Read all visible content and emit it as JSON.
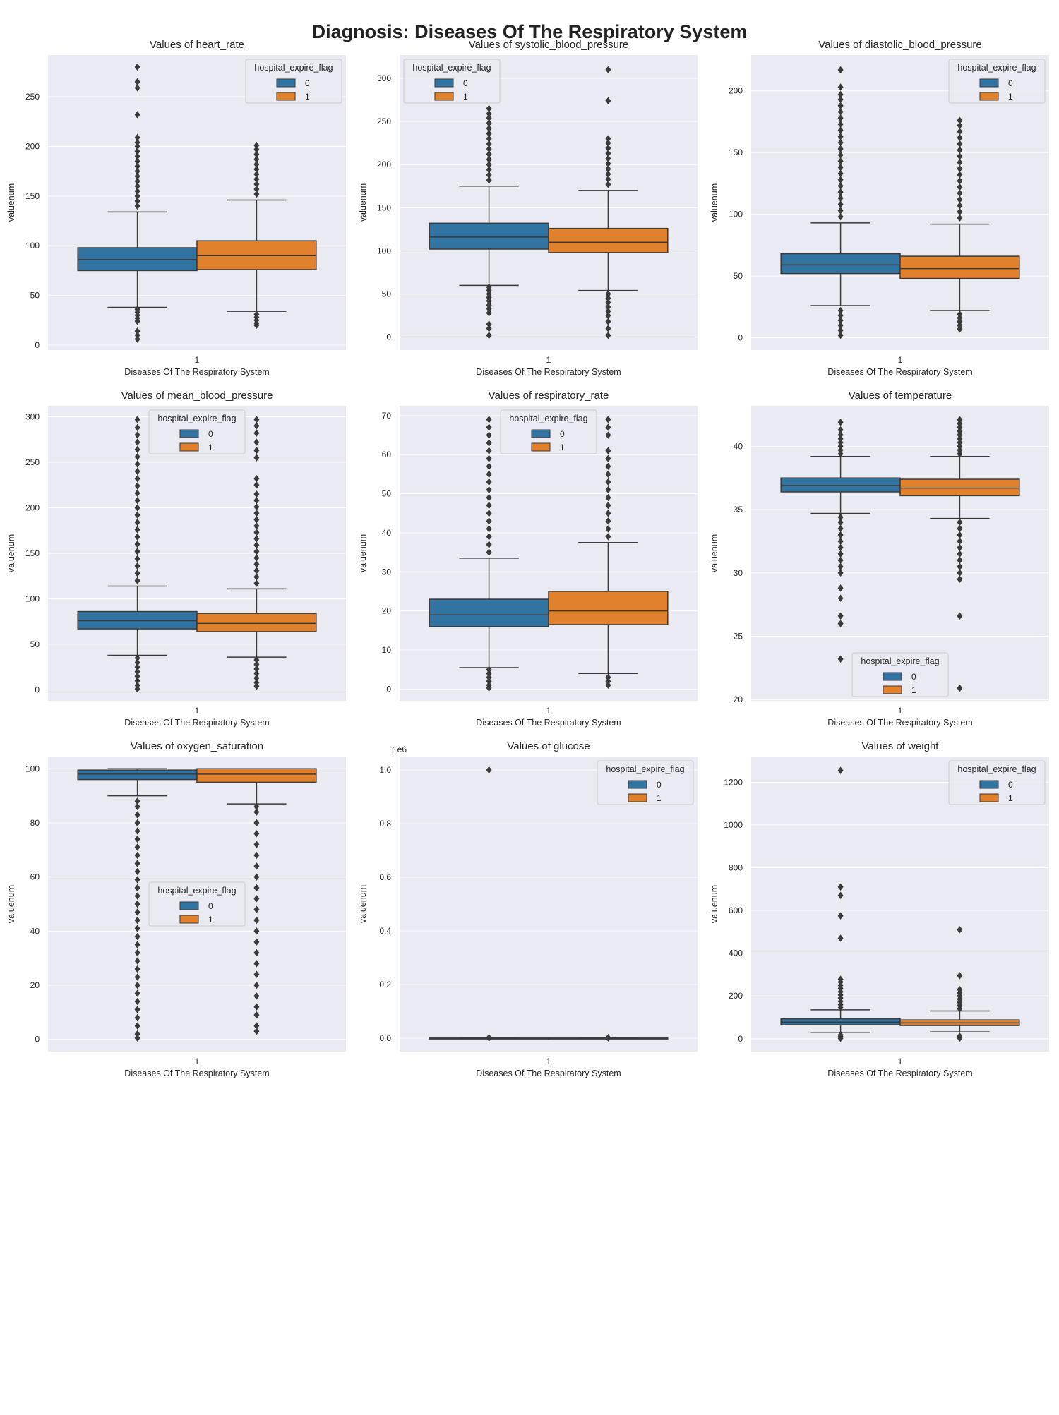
{
  "figure": {
    "suptitle": "Diagnosis: Diseases Of The Respiratory System"
  },
  "colors": {
    "group_0": "#3274a1",
    "group_1": "#e1812c",
    "axes_bg": "#eaeaf2",
    "grid": "#ffffff",
    "line": "#3a3a3a"
  },
  "chart_data": [
    {
      "type": "box",
      "title": "Values of heart_rate",
      "xlabel": "Diseases Of The Respiratory System",
      "ylabel": "valuenum",
      "categories": [
        "1"
      ],
      "ylim": [
        -5,
        292
      ],
      "yticks": [
        0,
        50,
        100,
        150,
        200,
        250
      ],
      "tick_labels": [
        "0",
        "50",
        "100",
        "150",
        "200",
        "250"
      ],
      "legend": {
        "title": "hospital_expire_flag",
        "entries": [
          "0",
          "1"
        ],
        "position": "top-right"
      },
      "series": [
        {
          "name": "0",
          "whislo": 38,
          "q1": 75,
          "median": 86,
          "q3": 98,
          "whishi": 134,
          "outliers": [
            6,
            10,
            14,
            24,
            27,
            30,
            33,
            36,
            140,
            145,
            150,
            155,
            160,
            165,
            170,
            175,
            180,
            185,
            190,
            195,
            200,
            204,
            209,
            232,
            259,
            265,
            280
          ]
        },
        {
          "name": "1",
          "whislo": 34,
          "q1": 76,
          "median": 90,
          "q3": 105,
          "whishi": 146,
          "outliers": [
            20,
            22,
            25,
            28,
            31,
            152,
            157,
            162,
            167,
            172,
            177,
            182,
            187,
            192,
            197,
            201
          ]
        }
      ]
    },
    {
      "type": "box",
      "title": "Values of systolic_blood_pressure",
      "xlabel": "Diseases Of The Respiratory System",
      "ylabel": "valuenum",
      "categories": [
        "1"
      ],
      "ylim": [
        -15,
        327
      ],
      "yticks": [
        0,
        50,
        100,
        150,
        200,
        250,
        300
      ],
      "tick_labels": [
        "0",
        "50",
        "100",
        "150",
        "200",
        "250",
        "300"
      ],
      "legend": {
        "title": "hospital_expire_flag",
        "entries": [
          "0",
          "1"
        ],
        "position": "top-left"
      },
      "series": [
        {
          "name": "0",
          "whislo": 60,
          "q1": 102,
          "median": 116,
          "q3": 132,
          "whishi": 175,
          "outliers": [
            2,
            10,
            15,
            28,
            33,
            37,
            42,
            46,
            50,
            54,
            58,
            182,
            188,
            194,
            200,
            206,
            212,
            218,
            224,
            230,
            236,
            242,
            248,
            254,
            259,
            265
          ]
        },
        {
          "name": "1",
          "whislo": 54,
          "q1": 98,
          "median": 110,
          "q3": 126,
          "whishi": 170,
          "outliers": [
            2,
            10,
            18,
            25,
            30,
            35,
            40,
            45,
            50,
            177,
            183,
            189,
            195,
            201,
            207,
            213,
            219,
            225,
            230,
            274,
            310
          ]
        }
      ]
    },
    {
      "type": "box",
      "title": "Values of diastolic_blood_pressure",
      "xlabel": "Diseases Of The Respiratory System",
      "ylabel": "valuenum",
      "categories": [
        "1"
      ],
      "ylim": [
        -10,
        229
      ],
      "yticks": [
        0,
        50,
        100,
        150,
        200
      ],
      "tick_labels": [
        "0",
        "50",
        "100",
        "150",
        "200"
      ],
      "legend": {
        "title": "hospital_expire_flag",
        "entries": [
          "0",
          "1"
        ],
        "position": "top-right"
      },
      "series": [
        {
          "name": "0",
          "whislo": 26,
          "q1": 52,
          "median": 59,
          "q3": 68,
          "whishi": 93,
          "outliers": [
            2,
            6,
            10,
            14,
            18,
            22,
            98,
            103,
            108,
            113,
            118,
            123,
            128,
            133,
            138,
            143,
            148,
            153,
            158,
            163,
            168,
            173,
            178,
            183,
            188,
            193,
            197,
            203,
            217
          ]
        },
        {
          "name": "1",
          "whislo": 22,
          "q1": 48,
          "median": 56,
          "q3": 66,
          "whishi": 92,
          "outliers": [
            7,
            10,
            13,
            16,
            19,
            97,
            102,
            107,
            112,
            117,
            122,
            127,
            132,
            137,
            142,
            147,
            152,
            157,
            162,
            167,
            172,
            176
          ]
        }
      ]
    },
    {
      "type": "box",
      "title": "Values of mean_blood_pressure",
      "xlabel": "Diseases Of The Respiratory System",
      "ylabel": "valuenum",
      "categories": [
        "1"
      ],
      "ylim": [
        -12,
        312
      ],
      "yticks": [
        0,
        50,
        100,
        150,
        200,
        250,
        300
      ],
      "tick_labels": [
        "0",
        "50",
        "100",
        "150",
        "200",
        "250",
        "300"
      ],
      "legend": {
        "title": "hospital_expire_flag",
        "entries": [
          "0",
          "1"
        ],
        "position": "top-center"
      },
      "series": [
        {
          "name": "0",
          "whislo": 38,
          "q1": 67,
          "median": 76,
          "q3": 86,
          "whishi": 114,
          "outliers": [
            1,
            5,
            10,
            15,
            20,
            25,
            30,
            35,
            120,
            128,
            136,
            144,
            152,
            160,
            168,
            176,
            184,
            192,
            200,
            208,
            216,
            224,
            232,
            240,
            248,
            256,
            264,
            272,
            280,
            288,
            297
          ]
        },
        {
          "name": "1",
          "whislo": 36,
          "q1": 64,
          "median": 73,
          "q3": 84,
          "whishi": 111,
          "outliers": [
            4,
            8,
            13,
            18,
            23,
            28,
            33,
            117,
            124,
            131,
            138,
            145,
            152,
            159,
            166,
            173,
            180,
            187,
            194,
            201,
            208,
            215,
            225,
            232,
            255,
            263,
            272,
            282,
            290,
            297
          ]
        }
      ]
    },
    {
      "type": "box",
      "title": "Values of respiratory_rate",
      "xlabel": "Diseases Of The Respiratory System",
      "ylabel": "valuenum",
      "categories": [
        "1"
      ],
      "ylim": [
        -3,
        72.5
      ],
      "yticks": [
        0,
        10,
        20,
        30,
        40,
        50,
        60,
        70
      ],
      "tick_labels": [
        "0",
        "10",
        "20",
        "30",
        "40",
        "50",
        "60",
        "70"
      ],
      "legend": {
        "title": "hospital_expire_flag",
        "entries": [
          "0",
          "1"
        ],
        "position": "top-center"
      },
      "series": [
        {
          "name": "0",
          "whislo": 5.5,
          "q1": 16,
          "median": 19,
          "q3": 23,
          "whishi": 33.5,
          "outliers": [
            0.3,
            1,
            2,
            3,
            4,
            5,
            35,
            37,
            39,
            41,
            43,
            45,
            47,
            49,
            51,
            53,
            55,
            57,
            59,
            61,
            63,
            65,
            67,
            69
          ]
        },
        {
          "name": "1",
          "whislo": 4,
          "q1": 16.5,
          "median": 20,
          "q3": 25,
          "whishi": 37.5,
          "outliers": [
            1,
            2,
            3,
            39,
            41,
            43,
            45,
            47,
            49,
            51,
            53,
            55,
            57,
            59,
            61,
            65,
            67,
            69
          ]
        }
      ]
    },
    {
      "type": "box",
      "title": "Values of temperature",
      "xlabel": "Diseases Of The Respiratory System",
      "ylabel": "valuenum",
      "categories": [
        "1"
      ],
      "ylim": [
        19.9,
        43.2
      ],
      "yticks": [
        20,
        25,
        30,
        35,
        40
      ],
      "tick_labels": [
        "20",
        "25",
        "30",
        "35",
        "40"
      ],
      "legend": {
        "title": "hospital_expire_flag",
        "entries": [
          "0",
          "1"
        ],
        "position": "bottom-center"
      },
      "series": [
        {
          "name": "0",
          "whislo": 34.7,
          "q1": 36.4,
          "median": 36.9,
          "q3": 37.5,
          "whishi": 39.2,
          "outliers": [
            23.2,
            26.0,
            26.6,
            28.0,
            28.8,
            30.0,
            30.5,
            31.0,
            31.5,
            32.0,
            32.5,
            33.0,
            33.5,
            34.0,
            34.4,
            39.4,
            39.7,
            40.0,
            40.3,
            40.6,
            40.9,
            41.3,
            41.9
          ]
        },
        {
          "name": "1",
          "whislo": 34.3,
          "q1": 36.1,
          "median": 36.7,
          "q3": 37.4,
          "whishi": 39.2,
          "outliers": [
            20.9,
            26.6,
            29.5,
            30.0,
            30.5,
            31.0,
            31.5,
            32.0,
            32.5,
            33.0,
            33.5,
            34.0,
            39.4,
            39.7,
            40.0,
            40.3,
            40.6,
            40.9,
            41.2,
            41.5,
            41.8,
            42.1
          ]
        }
      ]
    },
    {
      "type": "box",
      "title": "Values of oxygen_saturation",
      "xlabel": "Diseases Of The Respiratory System",
      "ylabel": "valuenum",
      "categories": [
        "1"
      ],
      "ylim": [
        -4.5,
        104.5
      ],
      "yticks": [
        0,
        20,
        40,
        60,
        80,
        100
      ],
      "tick_labels": [
        "0",
        "20",
        "40",
        "60",
        "80",
        "100"
      ],
      "legend": {
        "title": "hospital_expire_flag",
        "entries": [
          "0",
          "1"
        ],
        "position": "center"
      },
      "series": [
        {
          "name": "0",
          "whislo": 90,
          "q1": 96,
          "median": 98,
          "q3": 99.5,
          "whishi": 100,
          "outliers": [
            0.5,
            2,
            5,
            8,
            11,
            14,
            17,
            20,
            23,
            26,
            29,
            32,
            35,
            38,
            41,
            44,
            47,
            50,
            53,
            56,
            59,
            62,
            65,
            68,
            71,
            74,
            77,
            80,
            83,
            86,
            88
          ]
        },
        {
          "name": "1",
          "whislo": 87,
          "q1": 95,
          "median": 98,
          "q3": 100,
          "whishi": 100,
          "outliers": [
            3,
            5,
            9,
            12,
            16,
            20,
            24,
            28,
            32,
            36,
            40,
            44,
            48,
            52,
            56,
            60,
            64,
            68,
            72,
            76,
            80,
            84,
            86
          ]
        }
      ]
    },
    {
      "type": "box",
      "title": "Values of glucose",
      "xlabel": "Diseases Of The Respiratory System",
      "ylabel": "valuenum",
      "offset_label": "1e6",
      "categories": [
        "1"
      ],
      "ylim": [
        -0.05,
        1.05
      ],
      "yticks": [
        0,
        0.2,
        0.4,
        0.6,
        0.8,
        1.0
      ],
      "tick_labels": [
        "0.0",
        "0.2",
        "0.4",
        "0.6",
        "0.8",
        "1.0"
      ],
      "legend": {
        "title": "hospital_expire_flag",
        "entries": [
          "0",
          "1"
        ],
        "position": "top-right"
      },
      "series": [
        {
          "name": "0",
          "whislo": 0,
          "q1": 0.0001,
          "median": 0.00013,
          "q3": 0.00017,
          "whishi": 0.0003,
          "outliers": [
            0.001,
            0.002,
            1.0
          ]
        },
        {
          "name": "1",
          "whislo": 0,
          "q1": 0.0001,
          "median": 0.00014,
          "q3": 0.00018,
          "whishi": 0.0003,
          "outliers": [
            0.001,
            0.002
          ]
        }
      ]
    },
    {
      "type": "box",
      "title": "Values of weight",
      "xlabel": "Diseases Of The Respiratory System",
      "ylabel": "valuenum",
      "categories": [
        "1"
      ],
      "ylim": [
        -60,
        1320
      ],
      "yticks": [
        0,
        200,
        400,
        600,
        800,
        1000,
        1200
      ],
      "tick_labels": [
        "0",
        "200",
        "400",
        "600",
        "800",
        "1000",
        "1200"
      ],
      "legend": {
        "title": "hospital_expire_flag",
        "entries": [
          "0",
          "1"
        ],
        "position": "top-right"
      },
      "series": [
        {
          "name": "0",
          "whislo": 30,
          "q1": 65,
          "median": 78,
          "q3": 93,
          "whishi": 135,
          "outliers": [
            2,
            10,
            18,
            145,
            160,
            175,
            190,
            205,
            220,
            235,
            250,
            265,
            278,
            470,
            575,
            670,
            710,
            1255
          ]
        },
        {
          "name": "1",
          "whislo": 32,
          "q1": 62,
          "median": 74,
          "q3": 88,
          "whishi": 130,
          "outliers": [
            3,
            12,
            140,
            155,
            170,
            185,
            200,
            215,
            230,
            295,
            510
          ]
        }
      ]
    }
  ]
}
